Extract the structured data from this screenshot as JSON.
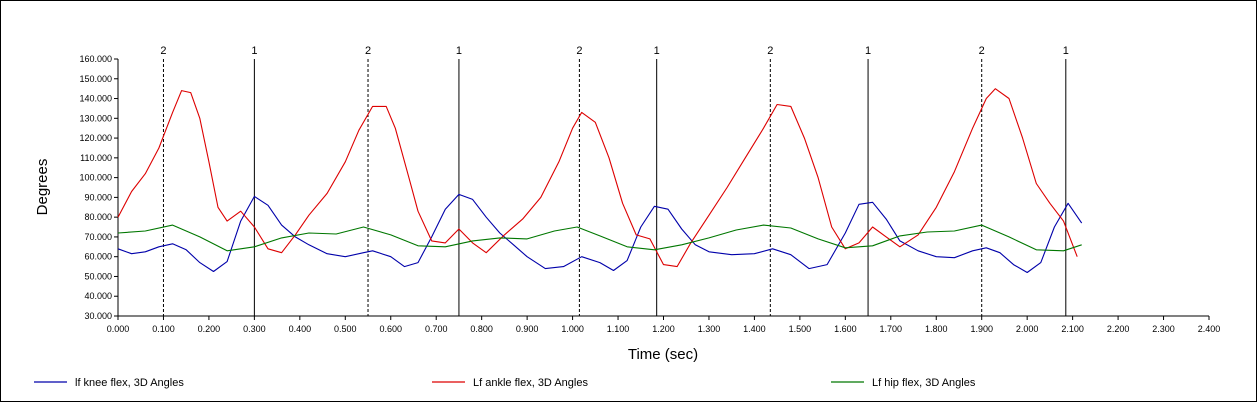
{
  "chart_data": {
    "type": "line",
    "xlabel": "Time (sec)",
    "ylabel": "Degrees",
    "xlim": [
      0,
      2.4
    ],
    "ylim": [
      30,
      160
    ],
    "xticks": [
      "0.000",
      "0.100",
      "0.200",
      "0.300",
      "0.400",
      "0.500",
      "0.600",
      "0.700",
      "0.800",
      "0.900",
      "1.000",
      "1.100",
      "1.200",
      "1.300",
      "1.400",
      "1.500",
      "1.600",
      "1.700",
      "1.800",
      "1.900",
      "2.000",
      "2.100",
      "2.200",
      "2.300",
      "2.400"
    ],
    "yticks": [
      "30.000",
      "40.000",
      "50.000",
      "60.000",
      "70.000",
      "80.000",
      "90.000",
      "100.000",
      "110.000",
      "120.000",
      "130.000",
      "140.000",
      "150.000",
      "160.000"
    ],
    "events": [
      {
        "label": "2",
        "x": 0.1,
        "style": "dashed"
      },
      {
        "label": "1",
        "x": 0.3,
        "style": "solid"
      },
      {
        "label": "2",
        "x": 0.55,
        "style": "dashed"
      },
      {
        "label": "1",
        "x": 0.75,
        "style": "solid"
      },
      {
        "label": "2",
        "x": 1.015,
        "style": "dashed"
      },
      {
        "label": "1",
        "x": 1.185,
        "style": "solid"
      },
      {
        "label": "2",
        "x": 1.435,
        "style": "dashed"
      },
      {
        "label": "1",
        "x": 1.65,
        "style": "solid"
      },
      {
        "label": "2",
        "x": 1.9,
        "style": "dashed"
      },
      {
        "label": "1",
        "x": 2.085,
        "style": "solid"
      }
    ],
    "series": [
      {
        "name": "lf knee flex, 3D Angles",
        "color": "#0000aa",
        "x": [
          0.0,
          0.03,
          0.06,
          0.09,
          0.12,
          0.15,
          0.18,
          0.21,
          0.24,
          0.27,
          0.3,
          0.33,
          0.36,
          0.39,
          0.42,
          0.46,
          0.5,
          0.54,
          0.56,
          0.6,
          0.63,
          0.66,
          0.69,
          0.72,
          0.75,
          0.78,
          0.81,
          0.84,
          0.87,
          0.9,
          0.94,
          0.98,
          1.02,
          1.06,
          1.09,
          1.12,
          1.15,
          1.18,
          1.21,
          1.24,
          1.27,
          1.3,
          1.35,
          1.4,
          1.44,
          1.48,
          1.52,
          1.56,
          1.6,
          1.63,
          1.66,
          1.69,
          1.72,
          1.76,
          1.8,
          1.84,
          1.88,
          1.91,
          1.94,
          1.97,
          2.0,
          2.03,
          2.06,
          2.09,
          2.12
        ],
        "values": [
          64.0,
          61.5,
          62.5,
          65.0,
          66.5,
          63.5,
          57.0,
          52.5,
          57.5,
          78.0,
          90.5,
          86.0,
          76.0,
          70.0,
          66.0,
          61.5,
          60.0,
          62.0,
          63.0,
          60.0,
          55.0,
          57.0,
          70.0,
          84.0,
          91.5,
          89.0,
          80.0,
          72.0,
          66.0,
          60.0,
          54.0,
          55.0,
          60.0,
          57.0,
          53.0,
          58.0,
          75.0,
          85.5,
          84.0,
          74.0,
          66.0,
          62.5,
          61.0,
          61.5,
          64.0,
          61.0,
          54.0,
          56.0,
          72.0,
          86.5,
          87.5,
          79.0,
          68.0,
          63.0,
          60.0,
          59.5,
          63.0,
          64.5,
          62.0,
          56.0,
          52.0,
          57.0,
          75.0,
          87.0,
          77.0
        ]
      },
      {
        "name": "Lf ankle flex, 3D Angles",
        "color": "#dd0000",
        "x": [
          0.0,
          0.03,
          0.06,
          0.09,
          0.12,
          0.14,
          0.16,
          0.18,
          0.2,
          0.22,
          0.24,
          0.27,
          0.3,
          0.33,
          0.36,
          0.39,
          0.42,
          0.46,
          0.5,
          0.53,
          0.56,
          0.59,
          0.61,
          0.64,
          0.66,
          0.69,
          0.72,
          0.75,
          0.78,
          0.81,
          0.85,
          0.89,
          0.93,
          0.97,
          1.0,
          1.02,
          1.05,
          1.08,
          1.11,
          1.14,
          1.17,
          1.2,
          1.23,
          1.26,
          1.3,
          1.34,
          1.38,
          1.42,
          1.45,
          1.48,
          1.51,
          1.54,
          1.57,
          1.6,
          1.63,
          1.66,
          1.69,
          1.72,
          1.76,
          1.8,
          1.84,
          1.88,
          1.91,
          1.93,
          1.96,
          1.99,
          2.02,
          2.05,
          2.08,
          2.11
        ],
        "values": [
          80.0,
          93.0,
          102.0,
          115.0,
          133.0,
          144.0,
          143.0,
          130.0,
          108.0,
          85.0,
          78.0,
          83.0,
          75.0,
          64.0,
          62.0,
          71.0,
          81.0,
          92.0,
          108.0,
          124.0,
          136.0,
          136.0,
          125.0,
          100.0,
          83.0,
          68.0,
          67.0,
          74.0,
          67.0,
          62.0,
          71.0,
          79.0,
          90.0,
          108.0,
          125.0,
          133.0,
          128.0,
          110.0,
          87.0,
          71.0,
          69.0,
          56.0,
          55.0,
          67.0,
          81.0,
          95.0,
          110.0,
          125.0,
          137.0,
          136.0,
          120.0,
          100.0,
          75.0,
          64.0,
          67.0,
          75.0,
          70.0,
          65.0,
          71.0,
          85.0,
          103.0,
          125.0,
          140.0,
          145.0,
          140.0,
          120.0,
          97.0,
          87.0,
          78.0,
          60.0
        ]
      },
      {
        "name": "Lf hip flex, 3D Angles",
        "color": "#007700",
        "x": [
          0.0,
          0.06,
          0.12,
          0.18,
          0.24,
          0.3,
          0.36,
          0.42,
          0.48,
          0.54,
          0.6,
          0.66,
          0.72,
          0.78,
          0.84,
          0.9,
          0.96,
          1.01,
          1.06,
          1.12,
          1.18,
          1.24,
          1.3,
          1.36,
          1.42,
          1.48,
          1.54,
          1.6,
          1.66,
          1.72,
          1.78,
          1.84,
          1.9,
          1.96,
          2.02,
          2.08,
          2.12
        ],
        "values": [
          72.0,
          73.0,
          76.0,
          70.0,
          63.0,
          65.0,
          69.5,
          72.0,
          71.5,
          75.0,
          71.0,
          65.5,
          65.0,
          68.0,
          69.5,
          69.0,
          73.0,
          75.0,
          70.5,
          65.0,
          63.5,
          66.0,
          69.5,
          73.5,
          76.0,
          74.5,
          69.0,
          64.5,
          65.5,
          70.5,
          72.5,
          73.0,
          76.0,
          70.0,
          63.5,
          63.0,
          66.0
        ]
      }
    ]
  }
}
